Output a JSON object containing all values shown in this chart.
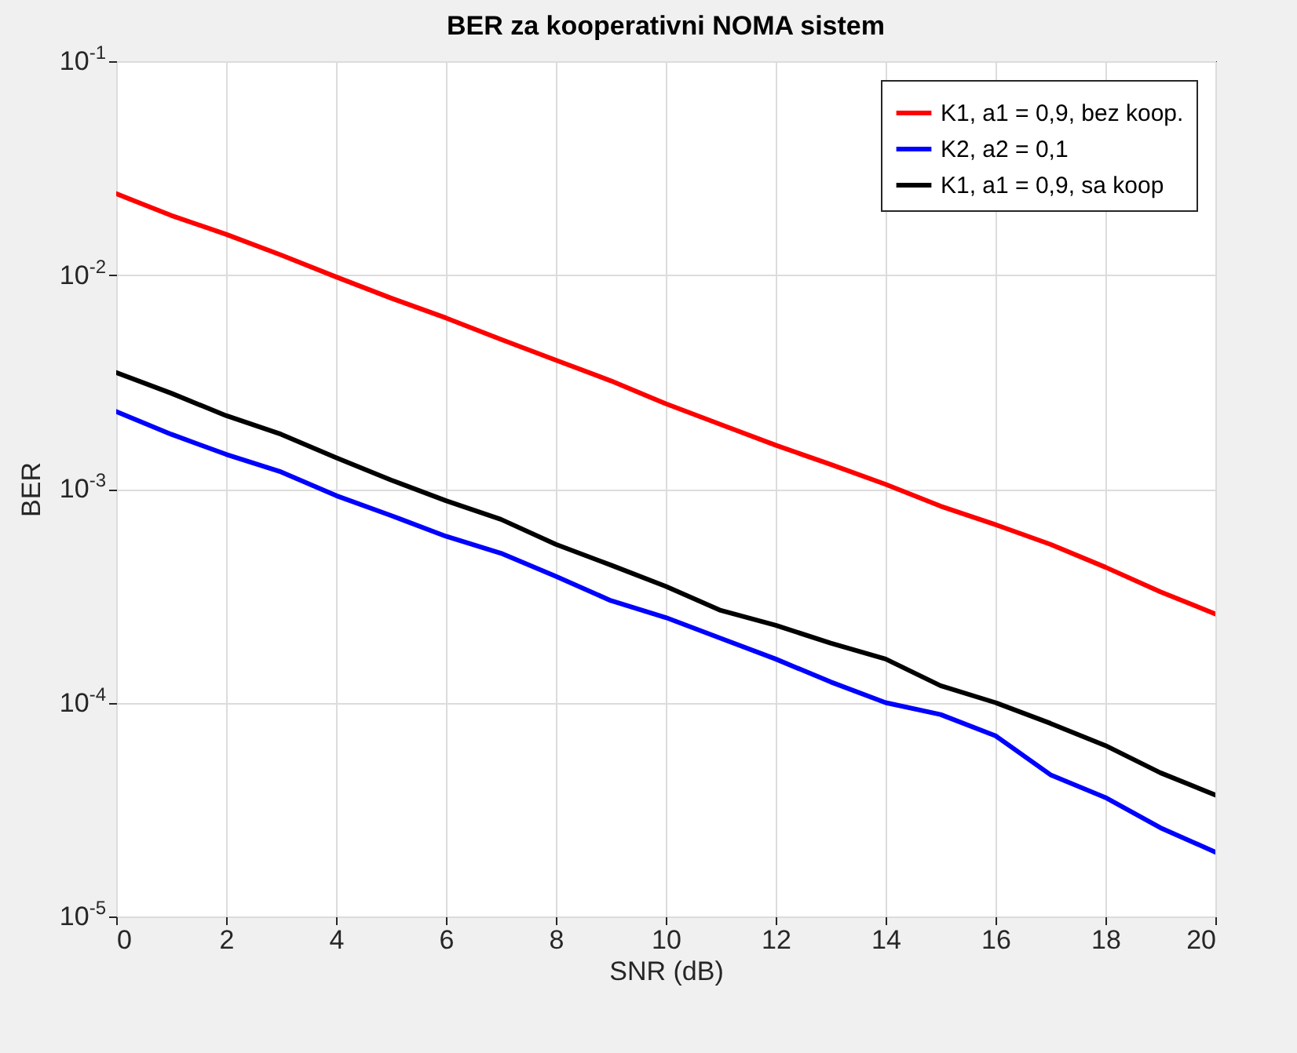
{
  "chart_data": {
    "type": "line",
    "title": "BER za kooperativni NOMA sistem",
    "xlabel": "SNR (dB)",
    "ylabel": "BER",
    "log": "y",
    "grid": true,
    "legend": "top right",
    "line_style": "solid",
    "marker": "none",
    "xlim": [
      0,
      20
    ],
    "xticks": [
      0,
      2,
      4,
      6,
      8,
      10,
      12,
      14,
      16,
      18,
      20
    ],
    "ylim": [
      1e-05,
      0.1
    ],
    "yticks": [
      {
        "value": 1e-05,
        "label": "10$^{-5}$"
      },
      {
        "value": 0.0001,
        "label": "10$^{-4}$"
      },
      {
        "value": 0.001,
        "label": "10$^{-3}$"
      },
      {
        "value": 0.01,
        "label": "10$^{-2}$"
      },
      {
        "value": 0.1,
        "label": "10$^{-1}$"
      }
    ],
    "x": [
      0,
      1,
      2,
      3,
      4,
      5,
      6,
      7,
      8,
      9,
      10,
      11,
      12,
      13,
      14,
      15,
      16,
      17,
      18,
      19,
      20
    ],
    "series": [
      {
        "name": "K1, a1 = 0,9, bez koop.",
        "color": "#ff0000",
        "values": [
          0.024,
          0.019,
          0.0155,
          0.0124,
          0.0098,
          0.0078,
          0.0063,
          0.005,
          0.004,
          0.0032,
          0.0025,
          0.002,
          0.0016,
          0.0013,
          0.00105,
          0.00083,
          0.00068,
          0.00055,
          0.00043,
          0.00033,
          0.00026
        ]
      },
      {
        "name": "K2, a2 = 0,1",
        "color": "#0000ff",
        "values": [
          0.0023,
          0.0018,
          0.00145,
          0.0012,
          0.00093,
          0.00075,
          0.0006,
          0.0005,
          0.00039,
          0.0003,
          0.00025,
          0.0002,
          0.00016,
          0.000125,
          0.0001,
          8.8e-05,
          7e-05,
          4.6e-05,
          3.6e-05,
          2.6e-05,
          2e-05
        ]
      },
      {
        "name": "K1, a1 = 0,9, sa koop",
        "color": "#000000",
        "values": [
          0.0035,
          0.0028,
          0.0022,
          0.0018,
          0.0014,
          0.0011,
          0.00088,
          0.00072,
          0.00055,
          0.00044,
          0.00035,
          0.00027,
          0.00023,
          0.00019,
          0.00016,
          0.00012,
          0.0001,
          8e-05,
          6.3e-05,
          4.7e-05,
          3.7e-05
        ]
      }
    ]
  }
}
